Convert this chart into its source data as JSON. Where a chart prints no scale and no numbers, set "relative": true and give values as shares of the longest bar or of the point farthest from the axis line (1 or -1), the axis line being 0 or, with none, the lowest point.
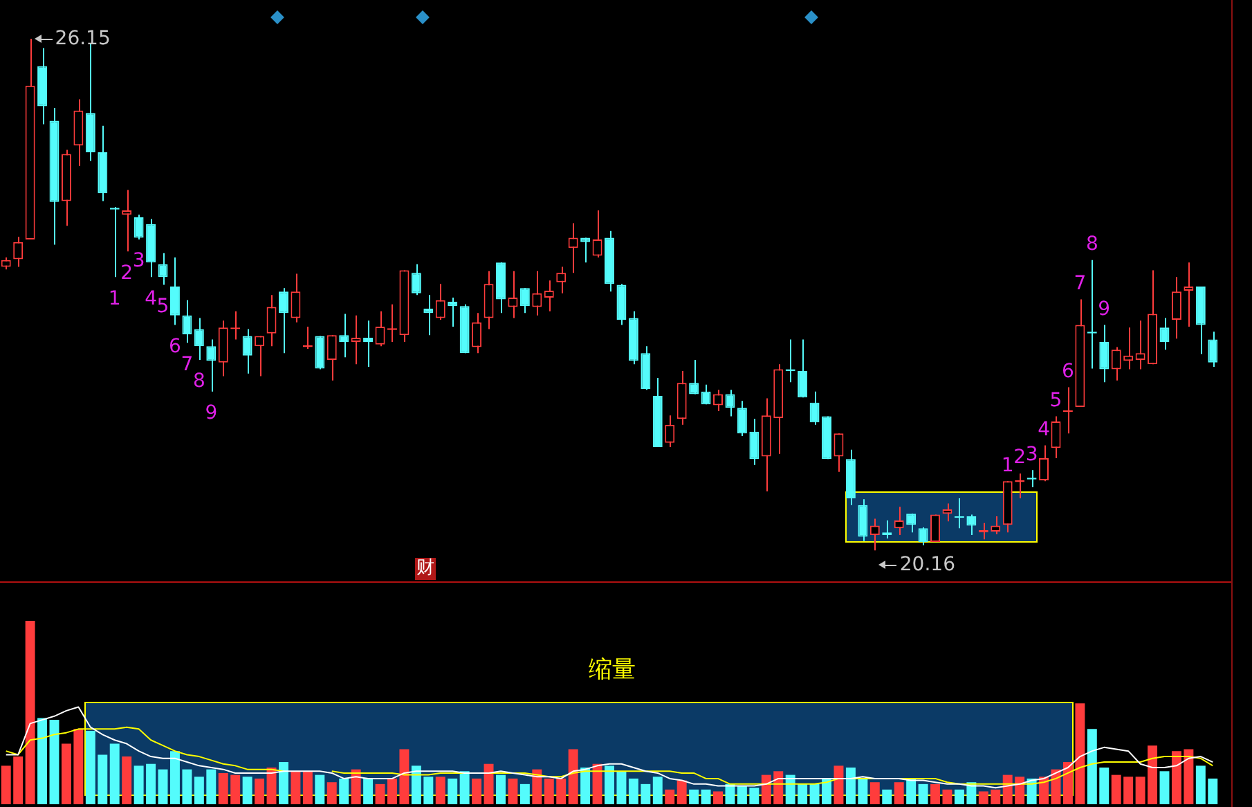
{
  "chart_data": [
    {
      "type": "candlestick",
      "categories": [
        null,
        null,
        null,
        null,
        null,
        null,
        null,
        null,
        null,
        null,
        null,
        null,
        null,
        null,
        null,
        null,
        null,
        null,
        null,
        null,
        null,
        null,
        null,
        null,
        null,
        null,
        null,
        null,
        null,
        null,
        null,
        null,
        null,
        null,
        null,
        null,
        null,
        null,
        null,
        null,
        null,
        null,
        null,
        null,
        null,
        null,
        null,
        null,
        null,
        null,
        null,
        null,
        null,
        null,
        null,
        null,
        null,
        null,
        null,
        null,
        null,
        null,
        null,
        null,
        null,
        null,
        null,
        null,
        null,
        null,
        null,
        null,
        null,
        null,
        null,
        null,
        null,
        null,
        null,
        null,
        null,
        null,
        null,
        null,
        null,
        null,
        null,
        null,
        null,
        null,
        null,
        null,
        null,
        null,
        null,
        null,
        null,
        null,
        null,
        null,
        null
      ],
      "ohlc": [
        [
          23.48,
          23.59,
          23.45,
          23.56
        ],
        [
          23.57,
          23.83,
          23.48,
          23.77
        ],
        [
          23.8,
          26.15,
          23.8,
          25.6
        ],
        [
          25.83,
          26.04,
          25.15,
          25.36
        ],
        [
          25.19,
          25.34,
          23.74,
          24.24
        ],
        [
          24.25,
          24.85,
          23.96,
          24.8
        ],
        [
          24.9,
          25.44,
          24.66,
          25.31
        ],
        [
          25.28,
          26.09,
          24.72,
          24.82
        ],
        [
          24.82,
          25.13,
          24.25,
          24.34
        ],
        [
          24.17,
          24.18,
          23.36,
          24.15
        ],
        [
          24.09,
          24.38,
          23.66,
          24.14
        ],
        [
          24.06,
          24.09,
          23.8,
          23.82
        ],
        [
          23.98,
          24.04,
          23.36,
          23.53
        ],
        [
          23.51,
          23.64,
          23.27,
          23.36
        ],
        [
          23.25,
          23.59,
          22.8,
          22.91
        ],
        [
          22.91,
          23.09,
          22.59,
          22.69
        ],
        [
          22.75,
          22.88,
          22.39,
          22.55
        ],
        [
          22.55,
          22.63,
          22.02,
          22.38
        ],
        [
          22.36,
          22.85,
          22.2,
          22.77
        ],
        [
          22.75,
          22.96,
          22.63,
          22.77
        ],
        [
          22.67,
          22.75,
          22.23,
          22.44
        ],
        [
          22.55,
          22.67,
          22.2,
          22.67
        ],
        [
          22.7,
          23.15,
          22.55,
          23.01
        ],
        [
          23.19,
          23.23,
          22.47,
          22.94
        ],
        [
          22.88,
          23.4,
          22.83,
          23.19
        ],
        [
          22.54,
          22.78,
          22.52,
          22.56
        ],
        [
          22.67,
          22.67,
          22.28,
          22.29
        ],
        [
          22.39,
          22.68,
          22.15,
          22.68
        ],
        [
          22.68,
          22.93,
          22.42,
          22.6
        ],
        [
          22.6,
          22.91,
          22.34,
          22.65
        ],
        [
          22.65,
          22.85,
          22.31,
          22.6
        ],
        [
          22.57,
          22.96,
          22.55,
          22.78
        ],
        [
          22.74,
          23.04,
          22.6,
          22.76
        ],
        [
          22.68,
          23.44,
          22.6,
          23.44
        ],
        [
          23.41,
          23.51,
          23.15,
          23.17
        ],
        [
          22.99,
          23.15,
          22.68,
          22.94
        ],
        [
          22.88,
          23.28,
          22.86,
          23.09
        ],
        [
          23.07,
          23.12,
          22.78,
          23.02
        ],
        [
          23.02,
          23.04,
          22.47,
          22.47
        ],
        [
          22.54,
          22.94,
          22.47,
          22.83
        ],
        [
          22.88,
          23.43,
          22.75,
          23.28
        ],
        [
          23.53,
          23.53,
          22.94,
          23.1
        ],
        [
          23.01,
          23.43,
          22.88,
          23.12
        ],
        [
          23.23,
          23.23,
          22.94,
          23.02
        ],
        [
          23.01,
          23.43,
          22.91,
          23.17
        ],
        [
          23.12,
          23.32,
          22.96,
          23.2
        ],
        [
          23.3,
          23.48,
          23.17,
          23.41
        ],
        [
          23.7,
          23.99,
          23.41,
          23.82
        ],
        [
          23.82,
          23.82,
          23.53,
          23.77
        ],
        [
          23.61,
          24.14,
          23.59,
          23.8
        ],
        [
          23.82,
          23.9,
          23.19,
          23.28
        ],
        [
          23.27,
          23.28,
          22.8,
          22.86
        ],
        [
          22.88,
          22.96,
          22.34,
          22.38
        ],
        [
          22.47,
          22.55,
          22.04,
          22.05
        ],
        [
          21.97,
          22.18,
          21.37,
          21.37
        ],
        [
          21.42,
          21.74,
          21.37,
          21.63
        ],
        [
          21.7,
          22.26,
          21.63,
          22.12
        ],
        [
          22.12,
          22.39,
          21.99,
          21.99
        ],
        [
          22.02,
          22.1,
          21.87,
          21.87
        ],
        [
          21.86,
          22.04,
          21.79,
          21.99
        ],
        [
          21.99,
          22.04,
          21.73,
          21.83
        ],
        [
          21.83,
          21.91,
          21.5,
          21.53
        ],
        [
          21.55,
          21.7,
          21.16,
          21.23
        ],
        [
          21.26,
          21.94,
          20.85,
          21.74
        ],
        [
          21.71,
          22.34,
          21.29,
          22.28
        ],
        [
          22.28,
          22.63,
          22.13,
          22.26
        ],
        [
          22.26,
          22.63,
          21.95,
          21.95
        ],
        [
          21.89,
          22.02,
          21.63,
          21.66
        ],
        [
          21.73,
          21.73,
          21.23,
          21.23
        ],
        [
          21.26,
          21.53,
          21.08,
          21.53
        ],
        [
          21.23,
          21.34,
          20.69,
          20.77
        ],
        [
          20.69,
          20.76,
          20.27,
          20.32
        ],
        [
          20.34,
          20.53,
          20.16,
          20.45
        ],
        [
          20.37,
          20.51,
          20.3,
          20.34
        ],
        [
          20.42,
          20.67,
          20.34,
          20.51
        ],
        [
          20.59,
          20.59,
          20.37,
          20.46
        ],
        [
          20.42,
          20.43,
          20.22,
          20.26
        ],
        [
          20.26,
          20.58,
          20.26,
          20.58
        ],
        [
          20.59,
          20.71,
          20.5,
          20.64
        ],
        [
          20.56,
          20.77,
          20.42,
          20.54
        ],
        [
          20.56,
          20.58,
          20.34,
          20.45
        ],
        [
          20.37,
          20.48,
          20.29,
          20.4
        ],
        [
          20.38,
          20.56,
          20.35,
          20.45
        ],
        [
          20.46,
          20.97,
          20.37,
          20.97
        ],
        [
          20.96,
          21.06,
          20.77,
          20.98
        ],
        [
          21.01,
          21.1,
          20.9,
          20.99
        ],
        [
          20.98,
          21.39,
          20.97,
          21.24
        ],
        [
          21.36,
          21.73,
          21.24,
          21.67
        ],
        [
          21.78,
          22.07,
          21.53,
          21.8
        ],
        [
          21.84,
          23.1,
          21.84,
          22.8
        ],
        [
          22.72,
          23.56,
          22.29,
          22.7
        ],
        [
          22.6,
          22.8,
          22.13,
          22.28
        ],
        [
          22.28,
          22.54,
          22.15,
          22.51
        ],
        [
          22.38,
          22.77,
          22.28,
          22.44
        ],
        [
          22.39,
          22.85,
          22.28,
          22.47
        ],
        [
          22.34,
          23.44,
          22.34,
          22.93
        ],
        [
          22.77,
          22.88,
          22.51,
          22.6
        ],
        [
          22.86,
          23.36,
          22.64,
          23.19
        ],
        [
          23.2,
          23.53,
          22.78,
          23.25
        ],
        [
          23.25,
          23.25,
          22.46,
          22.8
        ],
        [
          22.63,
          22.72,
          22.31,
          22.36
        ]
      ],
      "colors": [
        "#ff3c3c",
        "#ff3c3c",
        "#ff3c3c",
        "#54fcfc",
        "#54fcfc",
        "#ff3c3c",
        "#ff3c3c",
        "#54fcfc",
        "#54fcfc",
        "#54fcfc",
        "#ff3c3c",
        "#54fcfc",
        "#54fcfc",
        "#54fcfc",
        "#54fcfc",
        "#54fcfc",
        "#54fcfc",
        "#54fcfc",
        "#ff3c3c",
        "#ff3c3c",
        "#54fcfc",
        "#ff3c3c",
        "#ff3c3c",
        "#54fcfc",
        "#ff3c3c",
        "#ff3c3c",
        "#54fcfc",
        "#ff3c3c",
        "#54fcfc",
        "#ff3c3c",
        "#54fcfc",
        "#ff3c3c",
        "#ff3c3c",
        "#ff3c3c",
        "#54fcfc",
        "#54fcfc",
        "#ff3c3c",
        "#54fcfc",
        "#54fcfc",
        "#ff3c3c",
        "#ff3c3c",
        "#54fcfc",
        "#ff3c3c",
        "#54fcfc",
        "#ff3c3c",
        "#ff3c3c",
        "#ff3c3c",
        "#ff3c3c",
        "#54fcfc",
        "#ff3c3c",
        "#54fcfc",
        "#54fcfc",
        "#54fcfc",
        "#54fcfc",
        "#54fcfc",
        "#ff3c3c",
        "#ff3c3c",
        "#54fcfc",
        "#54fcfc",
        "#ff3c3c",
        "#54fcfc",
        "#54fcfc",
        "#54fcfc",
        "#ff3c3c",
        "#ff3c3c",
        "#54fcfc",
        "#54fcfc",
        "#54fcfc",
        "#54fcfc",
        "#ff3c3c",
        "#54fcfc",
        "#54fcfc",
        "#ff3c3c",
        "#54fcfc",
        "#ff3c3c",
        "#54fcfc",
        "#54fcfc",
        "#ff3c3c",
        "#ff3c3c",
        "#54fcfc",
        "#54fcfc",
        "#ff3c3c",
        "#ff3c3c",
        "#ff3c3c",
        "#ff3c3c",
        "#54fcfc",
        "#ff3c3c",
        "#ff3c3c",
        "#ff3c3c",
        "#ff3c3c",
        "#54fcfc",
        "#54fcfc",
        "#ff3c3c",
        "#ff3c3c",
        "#ff3c3c",
        "#ff3c3c",
        "#54fcfc",
        "#ff3c3c",
        "#ff3c3c",
        "#54fcfc",
        "#54fcfc"
      ],
      "value_labels": [
        null,
        null,
        null,
        null,
        null,
        null,
        null,
        null,
        null,
        "1",
        "2",
        "3",
        "4",
        "5",
        "6",
        "7",
        "8",
        "9",
        null,
        null,
        null,
        null,
        null,
        null,
        null,
        null,
        null,
        null,
        null,
        null,
        null,
        null,
        null,
        null,
        null,
        null,
        null,
        null,
        null,
        null,
        null,
        null,
        null,
        null,
        null,
        null,
        null,
        null,
        null,
        null,
        null,
        null,
        null,
        null,
        null,
        null,
        null,
        null,
        null,
        null,
        null,
        null,
        null,
        null,
        null,
        null,
        null,
        null,
        null,
        null,
        null,
        null,
        null,
        null,
        null,
        null,
        null,
        null,
        null,
        null,
        null,
        null,
        null,
        "1",
        "2",
        "3",
        "4",
        "5",
        "6",
        "7",
        "8",
        "9",
        null,
        null,
        null,
        null,
        null,
        null,
        null,
        null,
        null
      ],
      "tick_labels": false,
      "legend": false,
      "annotations": [
        "26.15",
        "20.16",
        "财"
      ]
    },
    {
      "type": "bar",
      "relative": true,
      "legend": false,
      "categories": [
        null,
        null,
        null,
        null,
        null,
        null,
        null,
        null,
        null,
        null,
        null,
        null,
        null,
        null,
        null,
        null,
        null,
        null,
        null,
        null,
        null,
        null,
        null,
        null,
        null,
        null,
        null,
        null,
        null,
        null,
        null,
        null,
        null,
        null,
        null,
        null,
        null,
        null,
        null,
        null,
        null,
        null,
        null,
        null,
        null,
        null,
        null,
        null,
        null,
        null,
        null,
        null,
        null,
        null,
        null,
        null,
        null,
        null,
        null,
        null,
        null,
        null,
        null,
        null,
        null,
        null,
        null,
        null,
        null,
        null,
        null,
        null,
        null,
        null,
        null,
        null,
        null,
        null,
        null,
        null,
        null,
        null,
        null,
        null,
        null,
        null,
        null,
        null,
        null,
        null,
        null,
        null,
        null,
        null,
        null,
        null,
        null,
        null,
        null,
        null,
        null
      ],
      "series": [
        {
          "type": "bar",
          "colors": [
            "#ff3c3c",
            "#ff3c3c",
            "#ff3c3c",
            "#54fcfc",
            "#54fcfc",
            "#ff3c3c",
            "#ff3c3c",
            "#54fcfc",
            "#54fcfc",
            "#54fcfc",
            "#ff3c3c",
            "#54fcfc",
            "#54fcfc",
            "#54fcfc",
            "#54fcfc",
            "#54fcfc",
            "#54fcfc",
            "#54fcfc",
            "#ff3c3c",
            "#ff3c3c",
            "#54fcfc",
            "#ff3c3c",
            "#ff3c3c",
            "#54fcfc",
            "#ff3c3c",
            "#ff3c3c",
            "#54fcfc",
            "#ff3c3c",
            "#54fcfc",
            "#ff3c3c",
            "#54fcfc",
            "#ff3c3c",
            "#ff3c3c",
            "#ff3c3c",
            "#54fcfc",
            "#54fcfc",
            "#ff3c3c",
            "#54fcfc",
            "#54fcfc",
            "#ff3c3c",
            "#ff3c3c",
            "#54fcfc",
            "#ff3c3c",
            "#54fcfc",
            "#ff3c3c",
            "#ff3c3c",
            "#ff3c3c",
            "#ff3c3c",
            "#54fcfc",
            "#ff3c3c",
            "#54fcfc",
            "#54fcfc",
            "#54fcfc",
            "#54fcfc",
            "#54fcfc",
            "#ff3c3c",
            "#ff3c3c",
            "#54fcfc",
            "#54fcfc",
            "#ff3c3c",
            "#54fcfc",
            "#54fcfc",
            "#54fcfc",
            "#ff3c3c",
            "#ff3c3c",
            "#54fcfc",
            "#54fcfc",
            "#54fcfc",
            "#54fcfc",
            "#ff3c3c",
            "#54fcfc",
            "#54fcfc",
            "#ff3c3c",
            "#54fcfc",
            "#ff3c3c",
            "#54fcfc",
            "#54fcfc",
            "#ff3c3c",
            "#ff3c3c",
            "#54fcfc",
            "#54fcfc",
            "#ff3c3c",
            "#ff3c3c",
            "#ff3c3c",
            "#ff3c3c",
            "#54fcfc",
            "#ff3c3c",
            "#ff3c3c",
            "#ff3c3c",
            "#ff3c3c",
            "#54fcfc",
            "#54fcfc",
            "#ff3c3c",
            "#ff3c3c",
            "#ff3c3c",
            "#ff3c3c",
            "#54fcfc",
            "#ff3c3c",
            "#ff3c3c",
            "#54fcfc",
            "#54fcfc"
          ],
          "values": [
            0.21,
            0.26,
            1,
            0.47,
            0.46,
            0.33,
            0.41,
            0.4,
            0.27,
            0.33,
            0.26,
            0.21,
            0.22,
            0.19,
            0.29,
            0.19,
            0.15,
            0.19,
            0.17,
            0.16,
            0.15,
            0.14,
            0.2,
            0.23,
            0.18,
            0.18,
            0.16,
            0.12,
            0.14,
            0.19,
            0.14,
            0.11,
            0.14,
            0.3,
            0.21,
            0.15,
            0.15,
            0.14,
            0.18,
            0.14,
            0.22,
            0.16,
            0.14,
            0.11,
            0.19,
            0.14,
            0.14,
            0.3,
            0.2,
            0.22,
            0.21,
            0.18,
            0.14,
            0.11,
            0.15,
            0.08,
            0.13,
            0.08,
            0.08,
            0.07,
            0.11,
            0.1,
            0.09,
            0.16,
            0.18,
            0.16,
            0.11,
            0.11,
            0.14,
            0.21,
            0.2,
            0.14,
            0.12,
            0.08,
            0.12,
            0.14,
            0.11,
            0.11,
            0.08,
            0.08,
            0.12,
            0.07,
            0.08,
            0.16,
            0.15,
            0.14,
            0.15,
            0.19,
            0.23,
            0.55,
            0.41,
            0.2,
            0.16,
            0.15,
            0.15,
            0.32,
            0.18,
            0.29,
            0.3,
            0.21,
            0.14
          ]
        },
        {
          "type": "line",
          "color": "#ffffff",
          "values": [
            0.27,
            0.27,
            0.44,
            0.46,
            0.48,
            0.51,
            0.53,
            0.42,
            0.38,
            0.35,
            0.33,
            0.29,
            0.26,
            0.25,
            0.25,
            0.23,
            0.21,
            0.2,
            0.19,
            0.17,
            0.17,
            0.17,
            0.17,
            0.18,
            0.18,
            0.18,
            0.18,
            0.17,
            0.14,
            0.15,
            0.14,
            0.14,
            0.14,
            0.17,
            0.18,
            0.18,
            0.18,
            0.18,
            0.17,
            0.17,
            0.17,
            0.18,
            0.17,
            0.16,
            0.15,
            0.15,
            0.14,
            0.18,
            0.19,
            0.21,
            0.22,
            0.22,
            0.2,
            0.18,
            0.17,
            0.14,
            0.13,
            0.11,
            0.11,
            0.1,
            0.1,
            0.1,
            0.1,
            0.11,
            0.14,
            0.14,
            0.14,
            0.14,
            0.14,
            0.14,
            0.14,
            0.15,
            0.14,
            0.14,
            0.14,
            0.13,
            0.13,
            0.12,
            0.11,
            0.11,
            0.1,
            0.1,
            0.09,
            0.1,
            0.11,
            0.13,
            0.14,
            0.17,
            0.2,
            0.26,
            0.29,
            0.31,
            0.3,
            0.29,
            0.22,
            0.2,
            0.2,
            0.21,
            0.25,
            0.26,
            0.23
          ]
        },
        {
          "type": "line",
          "color": "#ffff00",
          "values": [
            0.29,
            0.27,
            0.35,
            0.36,
            0.38,
            0.39,
            0.41,
            0.41,
            0.41,
            0.41,
            0.42,
            0.41,
            0.35,
            0.32,
            0.29,
            0.27,
            0.26,
            0.24,
            0.22,
            0.21,
            0.19,
            0.19,
            0.19,
            0.18,
            null,
            null,
            null,
            0.18,
            0.17,
            0.17,
            0.17,
            0.17,
            0.17,
            0.16,
            0.16,
            0.16,
            0.17,
            0.17,
            0.17,
            null,
            0.17,
            0.17,
            0.17,
            0.17,
            0.16,
            0.15,
            0.15,
            0.17,
            0.18,
            0.18,
            0.18,
            0.18,
            0.18,
            0.18,
            0.18,
            0.18,
            0.17,
            0.17,
            0.14,
            0.14,
            0.11,
            0.11,
            0.11,
            0.11,
            0.11,
            0.11,
            0.11,
            0.11,
            0.12,
            0.14,
            0.14,
            0.14,
            0.14,
            null,
            0.14,
            0.14,
            0.14,
            0.14,
            0.12,
            0.11,
            0.11,
            0.11,
            0.11,
            0.11,
            0.11,
            0.11,
            0.12,
            0.14,
            0.17,
            0.2,
            0.22,
            0.23,
            0.23,
            0.23,
            0.23,
            0.25,
            0.26,
            0.26,
            0.26,
            0.25,
            0.21
          ]
        }
      ],
      "annotations": [
        "缩量"
      ]
    }
  ]
}
